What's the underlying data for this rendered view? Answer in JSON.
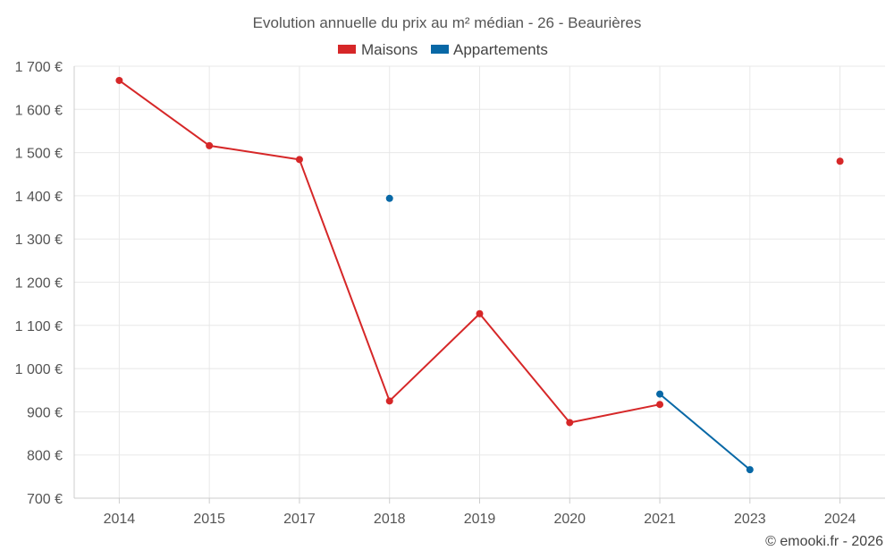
{
  "chart_data": {
    "type": "line",
    "title": "Evolution annuelle du prix au m² médian - 26 - Beaurières",
    "categories": [
      "2014",
      "2015",
      "2017",
      "2018",
      "2019",
      "2020",
      "2021",
      "2023",
      "2024"
    ],
    "ylim": [
      700,
      1700
    ],
    "yticks": [
      700,
      800,
      900,
      1000,
      1100,
      1200,
      1300,
      1400,
      1500,
      1600,
      1700
    ],
    "ytick_labels": [
      "700 €",
      "800 €",
      "900 €",
      "1 000 €",
      "1 100 €",
      "1 200 €",
      "1 300 €",
      "1 400 €",
      "1 500 €",
      "1 600 €",
      "1 700 €"
    ],
    "grid": true,
    "legend_position": "top-center",
    "series": [
      {
        "name": "Maisons",
        "color": "#d62728",
        "values": [
          1667,
          1516,
          1484,
          925,
          1127,
          875,
          917,
          null,
          1480
        ]
      },
      {
        "name": "Appartements",
        "color": "#0868a6",
        "values": [
          null,
          null,
          null,
          1394,
          null,
          null,
          941,
          766,
          null
        ]
      }
    ]
  },
  "credit": "© emooki.fr - 2026"
}
